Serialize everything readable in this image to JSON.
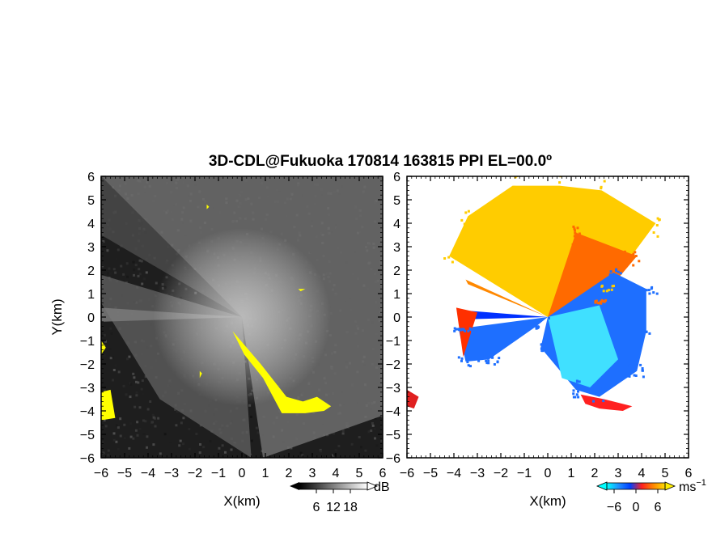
{
  "figure": {
    "title": "3D-CDL@Fukuoka 170814 163815 PPI EL=00.0º"
  },
  "chart_data": [
    {
      "type": "heatmap",
      "panel": "left",
      "quantity": "backscatter intensity",
      "xlabel": "X(km)",
      "ylabel": "Y(km)",
      "xlim": [
        -6,
        6
      ],
      "ylim": [
        -6,
        6
      ],
      "xticks": [
        "-6",
        "-5",
        "-4",
        "-3",
        "-2",
        "-1",
        "0",
        "1",
        "2",
        "3",
        "4",
        "5",
        "6"
      ],
      "yticks": [
        "-6",
        "-5",
        "-4",
        "-3",
        "-2",
        "-1",
        "0",
        "1",
        "2",
        "3",
        "4",
        "5",
        "6"
      ],
      "colorbar": {
        "unit": "dB",
        "ticks": [
          "6",
          "12",
          "18"
        ],
        "colormap": "grayscale",
        "range": [
          0,
          24
        ]
      },
      "colors": {
        "background": "#1e1e1e",
        "highlight": "#ffff00"
      },
      "highlight_regions": [
        {
          "x": [
            -0.4,
            0.8,
            1.9,
            2.6,
            3.2,
            3.8,
            3.5,
            2.7,
            1.7,
            0.9,
            0.1
          ],
          "y": [
            -0.6,
            -2.0,
            -3.4,
            -3.6,
            -3.4,
            -3.8,
            -4.0,
            -4.1,
            -4.1,
            -2.6,
            -1.6
          ]
        },
        {
          "x": [
            -6.0,
            -5.6,
            -5.4,
            -6.0
          ],
          "y": [
            -3.2,
            -3.1,
            -4.3,
            -4.4
          ]
        },
        {
          "x": [
            -6.0,
            -5.8,
            -6.0
          ],
          "y": [
            -1.0,
            -1.3,
            -1.6
          ]
        },
        {
          "x": [
            2.4,
            2.7,
            2.5
          ],
          "y": [
            1.2,
            1.2,
            1.1
          ]
        },
        {
          "x": [
            -1.8,
            -1.7,
            -1.8
          ],
          "y": [
            -2.3,
            -2.4,
            -2.6
          ]
        },
        {
          "x": [
            -1.5,
            -1.4,
            -1.5
          ],
          "y": [
            4.8,
            4.7,
            4.6
          ]
        }
      ]
    },
    {
      "type": "heatmap",
      "panel": "right",
      "quantity": "radial velocity",
      "xlabel": "X(km)",
      "ylabel": "",
      "xlim": [
        -6,
        6
      ],
      "ylim": [
        -6,
        6
      ],
      "xticks": [
        "-6",
        "-5",
        "-4",
        "-3",
        "-2",
        "-1",
        "0",
        "1",
        "2",
        "3",
        "4",
        "5",
        "6"
      ],
      "yticks": [
        "-6",
        "-5",
        "-4",
        "-3",
        "-2",
        "-1",
        "0",
        "1",
        "2",
        "3",
        "4",
        "5",
        "6"
      ],
      "colorbar": {
        "unit": "ms",
        "unit_exponent": "−1",
        "ticks": [
          "−6",
          "0",
          "6"
        ],
        "range": [
          -8,
          8
        ],
        "colors": [
          "#00ffff",
          "#1e90ff",
          "#0040ff",
          "#ff2020",
          "#ff8800",
          "#ffdd00"
        ]
      },
      "regions": [
        {
          "name": "receding",
          "color": "#ffcc00",
          "x": [
            0,
            -4.2,
            -3.4,
            -1.5,
            0.5,
            2.3,
            4.6,
            2.6
          ],
          "y": [
            0,
            2.6,
            4.3,
            5.6,
            5.6,
            5.4,
            4.0,
            1.3
          ]
        },
        {
          "name": "receding-edge",
          "color": "#ff6a00",
          "x": [
            0,
            1.2,
            3.8,
            2.2
          ],
          "y": [
            0,
            3.6,
            2.6,
            0.7
          ]
        },
        {
          "name": "approaching",
          "color": "#1e6fff",
          "x": [
            0,
            2.8,
            4.2,
            4.2,
            3.8,
            2.2,
            1.2,
            -0.3
          ],
          "y": [
            0,
            1.9,
            1.2,
            -0.6,
            -2.3,
            -3.4,
            -3.1,
            -1.3
          ]
        },
        {
          "name": "approaching-west",
          "color": "#1e6fff",
          "x": [
            0,
            -3.8,
            -3.5,
            -2.5,
            -0.5
          ],
          "y": [
            0,
            -0.5,
            -1.9,
            -1.8,
            -0.4
          ]
        },
        {
          "name": "strong-approaching",
          "color": "#0030ff",
          "x": [
            0,
            -3.8,
            -3.6
          ],
          "y": [
            0,
            0.3,
            -0.1
          ]
        },
        {
          "name": "low-speed",
          "color": "#40e0ff",
          "x": [
            0,
            2.2,
            3.0,
            1.8,
            0.6
          ],
          "y": [
            0,
            0.5,
            -1.8,
            -3.0,
            -2.6
          ]
        },
        {
          "name": "fringe-red-south",
          "color": "#ff2020",
          "x": [
            1.4,
            2.4,
            3.6,
            3.2,
            2.2,
            1.6
          ],
          "y": [
            -3.3,
            -3.5,
            -3.8,
            -4.0,
            -3.9,
            -3.7
          ]
        },
        {
          "name": "beam-orange",
          "color": "#ff8800",
          "x": [
            0,
            -3.5,
            -3.4
          ],
          "y": [
            0,
            1.6,
            1.4
          ]
        },
        {
          "name": "west-red",
          "color": "#ff3000",
          "x": [
            -3.9,
            -3.0,
            -3.6
          ],
          "y": [
            0.4,
            0.2,
            -1.7
          ]
        },
        {
          "name": "edge-left",
          "color": "#e02020",
          "x": [
            -6.0,
            -5.5,
            -5.7,
            -6.0
          ],
          "y": [
            -3.1,
            -3.4,
            -3.9,
            -3.8
          ]
        }
      ]
    }
  ]
}
